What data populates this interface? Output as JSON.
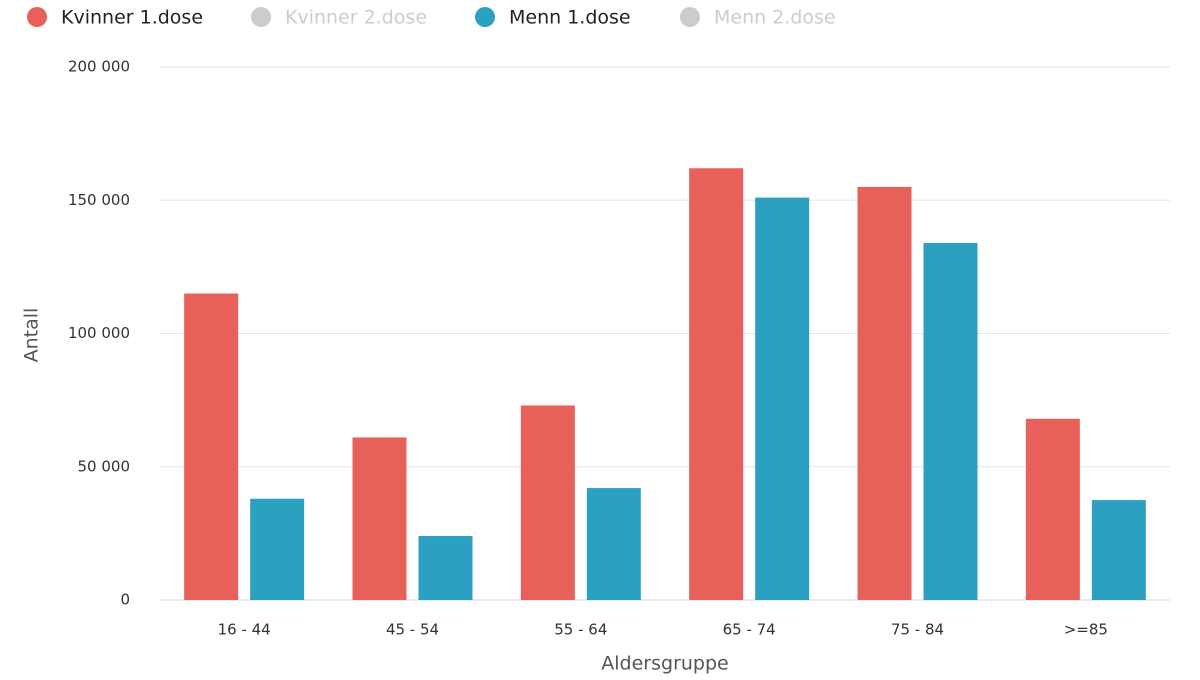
{
  "chart_data": {
    "type": "bar",
    "x_label": "Aldersgruppe",
    "y_label": "Antall",
    "categories": [
      "16 - 44",
      "45 - 54",
      "55 - 64",
      "65 - 74",
      "75 - 84",
      ">=85"
    ],
    "series": [
      {
        "name": "Kvinner 1.dose",
        "color": "#e8605a",
        "visible": true,
        "values": [
          115000,
          61000,
          73000,
          162000,
          155000,
          68000
        ]
      },
      {
        "name": "Kvinner 2.dose",
        "color": "#cccccc",
        "visible": false,
        "values": [
          null,
          null,
          null,
          null,
          null,
          null
        ]
      },
      {
        "name": "Menn 1.dose",
        "color": "#2ba0c0",
        "visible": true,
        "values": [
          38000,
          24000,
          42000,
          151000,
          134000,
          37500
        ]
      },
      {
        "name": "Menn 2.dose",
        "color": "#cccccc",
        "visible": false,
        "values": [
          null,
          null,
          null,
          null,
          null,
          null
        ]
      }
    ],
    "ylim": [
      0,
      200000
    ],
    "yticks": [
      0,
      {
        "value": 50000,
        "label": "50 000"
      },
      {
        "value": 100000,
        "label": "100 000"
      },
      {
        "value": 150000,
        "label": "150 000"
      },
      {
        "value": 200000,
        "label": "200 000"
      }
    ],
    "grid": true,
    "legend": "top"
  }
}
